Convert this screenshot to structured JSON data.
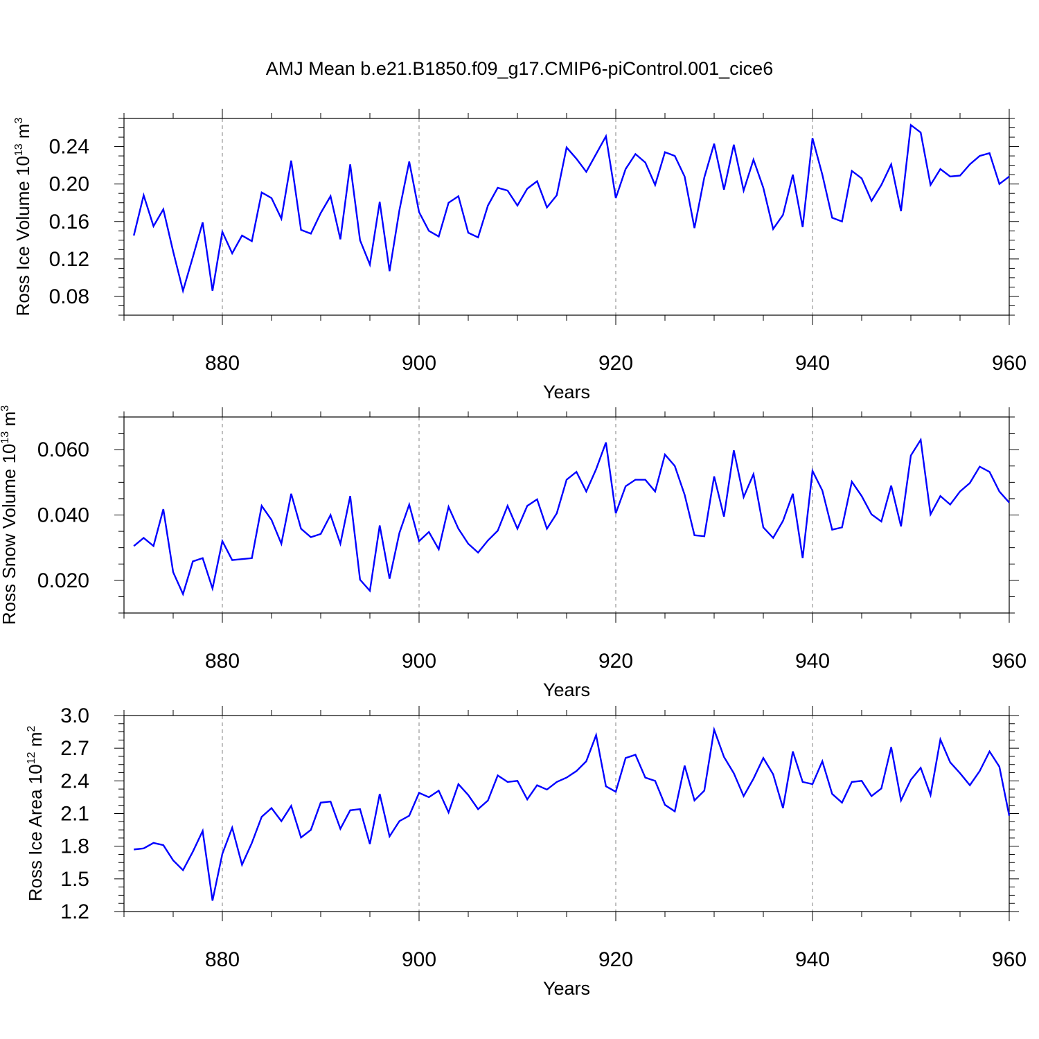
{
  "figure": {
    "title": "AMJ Mean b.e21.B1850.f09_g17.CMIP6-piControl.001_cice6",
    "background": "#ffffff",
    "line_color": "#0000ff",
    "axis_color": "#000000",
    "grid_color": "#808080"
  },
  "chart_data": [
    {
      "type": "line",
      "xlabel": "Years",
      "ylabel": "Ross Ice Volume 10",
      "ylabel_sup": "13",
      "ylabel_unit": " m",
      "ylabel_unit_sup": "3",
      "xlim": [
        870,
        960
      ],
      "ylim": [
        0.06,
        0.27
      ],
      "xticks": [
        880,
        900,
        920,
        940,
        960
      ],
      "xtick_labels": [
        "880",
        "900",
        "920",
        "940",
        "960"
      ],
      "yticks": [
        0.08,
        0.12,
        0.16,
        0.2,
        0.24
      ],
      "ytick_labels": [
        "0.08",
        "0.12",
        "0.16",
        "0.20",
        "0.24"
      ],
      "grid": "vertical dashed at x ticks",
      "x_start": 871,
      "series": [
        {
          "color": "#0000ff",
          "values": [
            0.145,
            0.188,
            0.155,
            0.173,
            0.128,
            0.086,
            0.122,
            0.159,
            0.086,
            0.149,
            0.126,
            0.145,
            0.139,
            0.191,
            0.185,
            0.163,
            0.225,
            0.151,
            0.147,
            0.169,
            0.187,
            0.141,
            0.221,
            0.14,
            0.114,
            0.181,
            0.107,
            0.172,
            0.224,
            0.17,
            0.15,
            0.144,
            0.18,
            0.187,
            0.148,
            0.143,
            0.177,
            0.196,
            0.193,
            0.177,
            0.195,
            0.203,
            0.175,
            0.188,
            0.239,
            0.227,
            0.213,
            0.232,
            0.251,
            0.185,
            0.216,
            0.232,
            0.223,
            0.199,
            0.234,
            0.23,
            0.208,
            0.153,
            0.207,
            0.243,
            0.194,
            0.242,
            0.193,
            0.226,
            0.196,
            0.152,
            0.167,
            0.21,
            0.154,
            0.249,
            0.21,
            0.164,
            0.16,
            0.214,
            0.206,
            0.182,
            0.199,
            0.221,
            0.171,
            0.263,
            0.255,
            0.199,
            0.216,
            0.208,
            0.209,
            0.221,
            0.23,
            0.233,
            0.2,
            0.208
          ]
        }
      ]
    },
    {
      "type": "line",
      "xlabel": "Years",
      "ylabel": "Ross Snow Volume 10",
      "ylabel_sup": "13",
      "ylabel_unit": " m",
      "ylabel_unit_sup": "3",
      "xlim": [
        870,
        960
      ],
      "ylim": [
        0.01,
        0.07
      ],
      "xticks": [
        880,
        900,
        920,
        940,
        960
      ],
      "xtick_labels": [
        "880",
        "900",
        "920",
        "940",
        "960"
      ],
      "yticks": [
        0.02,
        0.04,
        0.06
      ],
      "ytick_labels": [
        "0.020",
        "0.040",
        "0.060"
      ],
      "grid": "vertical dashed at x ticks",
      "x_start": 871,
      "series": [
        {
          "color": "#0000ff",
          "values": [
            0.0305,
            0.033,
            0.0305,
            0.0418,
            0.0225,
            0.0158,
            0.0258,
            0.0268,
            0.0175,
            0.032,
            0.0262,
            0.0265,
            0.0268,
            0.0428,
            0.0385,
            0.0312,
            0.0465,
            0.0358,
            0.0332,
            0.0342,
            0.04,
            0.0312,
            0.0458,
            0.0202,
            0.0168,
            0.0368,
            0.0205,
            0.0345,
            0.0432,
            0.032,
            0.0348,
            0.0295,
            0.0425,
            0.0358,
            0.0312,
            0.0285,
            0.0322,
            0.0352,
            0.0428,
            0.0358,
            0.0428,
            0.0448,
            0.0358,
            0.0405,
            0.0508,
            0.0532,
            0.0472,
            0.054,
            0.0622,
            0.0405,
            0.0488,
            0.0508,
            0.0508,
            0.0472,
            0.0585,
            0.055,
            0.0462,
            0.0338,
            0.0335,
            0.0518,
            0.0395,
            0.0598,
            0.0455,
            0.0525,
            0.0362,
            0.033,
            0.0382,
            0.0465,
            0.0268,
            0.0535,
            0.0475,
            0.0355,
            0.0362,
            0.0502,
            0.0458,
            0.0402,
            0.038,
            0.049,
            0.0365,
            0.0582,
            0.063,
            0.0402,
            0.0458,
            0.0432,
            0.0472,
            0.0498,
            0.0548,
            0.0532,
            0.0472,
            0.0438
          ]
        }
      ]
    },
    {
      "type": "line",
      "xlabel": "Years",
      "ylabel": "Ross Ice Area 10",
      "ylabel_sup": "12",
      "ylabel_unit": " m",
      "ylabel_unit_sup": "2",
      "xlim": [
        870,
        960
      ],
      "ylim": [
        1.2,
        3.0
      ],
      "xticks": [
        880,
        900,
        920,
        940,
        960
      ],
      "xtick_labels": [
        "880",
        "900",
        "920",
        "940",
        "960"
      ],
      "yticks": [
        1.2,
        1.5,
        1.8,
        2.1,
        2.4,
        2.7,
        3.0
      ],
      "ytick_labels": [
        "1.2",
        "1.5",
        "1.8",
        "2.1",
        "2.4",
        "2.7",
        "3.0"
      ],
      "grid": "vertical dashed at x ticks",
      "x_start": 871,
      "series": [
        {
          "color": "#0000ff",
          "values": [
            1.77,
            1.78,
            1.83,
            1.81,
            1.67,
            1.58,
            1.75,
            1.94,
            1.3,
            1.73,
            1.97,
            1.63,
            1.83,
            2.07,
            2.15,
            2.03,
            2.17,
            1.88,
            1.95,
            2.2,
            2.21,
            1.96,
            2.13,
            2.14,
            1.82,
            2.28,
            1.89,
            2.03,
            2.08,
            2.29,
            2.25,
            2.31,
            2.11,
            2.37,
            2.27,
            2.14,
            2.22,
            2.45,
            2.39,
            2.4,
            2.23,
            2.36,
            2.32,
            2.39,
            2.43,
            2.49,
            2.58,
            2.82,
            2.35,
            2.3,
            2.61,
            2.64,
            2.43,
            2.4,
            2.18,
            2.12,
            2.54,
            2.22,
            2.31,
            2.87,
            2.62,
            2.47,
            2.26,
            2.42,
            2.61,
            2.46,
            2.15,
            2.67,
            2.39,
            2.37,
            2.58,
            2.28,
            2.2,
            2.39,
            2.4,
            2.26,
            2.33,
            2.71,
            2.22,
            2.41,
            2.52,
            2.27,
            2.78,
            2.57,
            2.47,
            2.36,
            2.49,
            2.67,
            2.53,
            2.08
          ]
        }
      ]
    }
  ]
}
